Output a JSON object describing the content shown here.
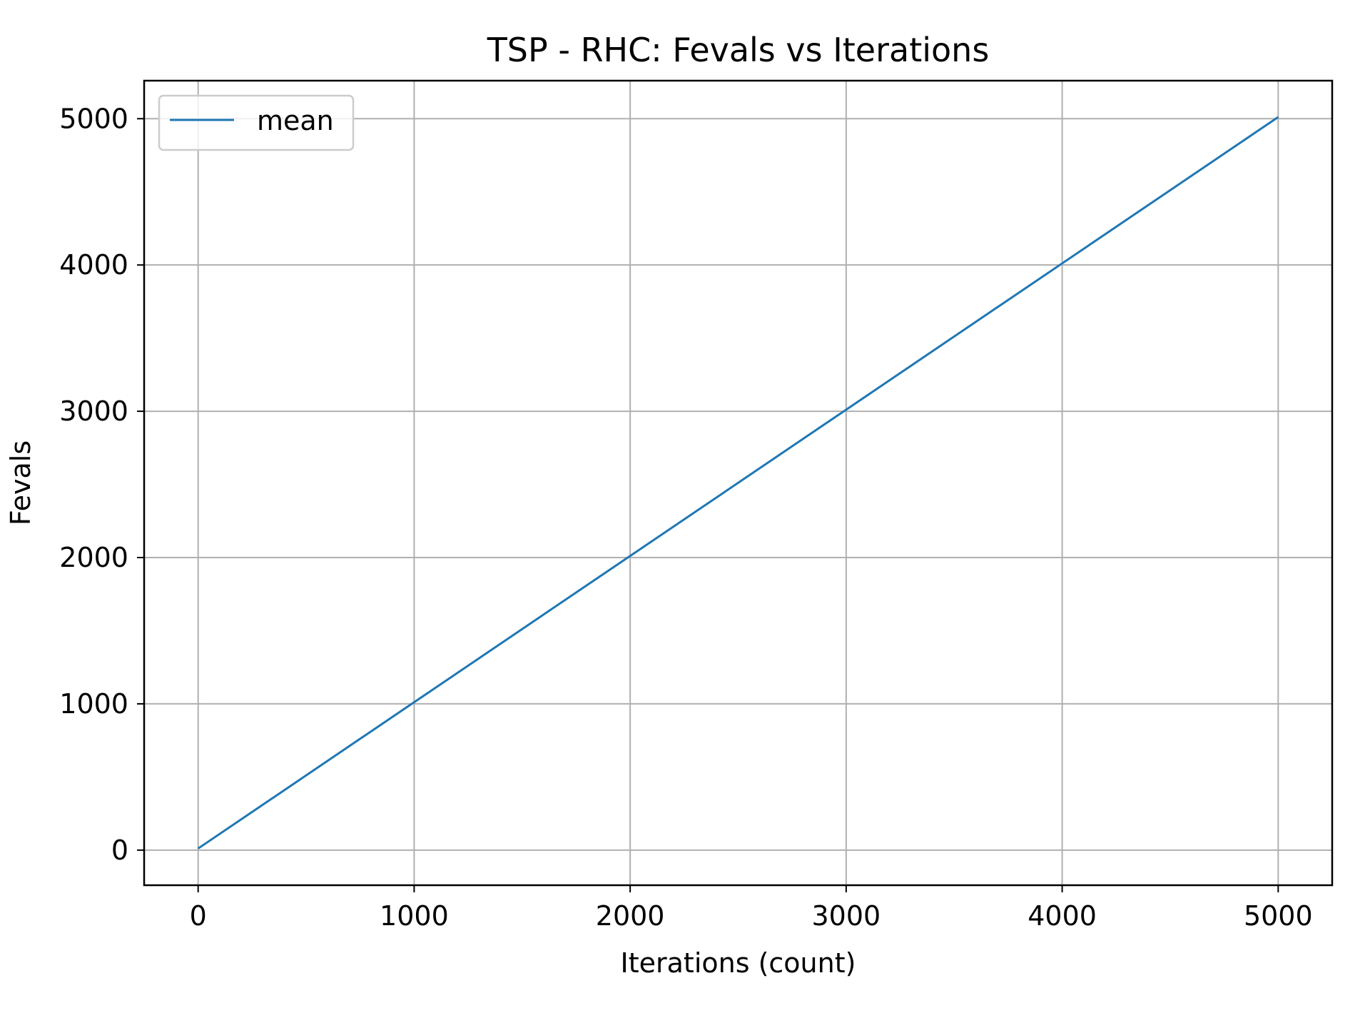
{
  "chart_data": {
    "type": "line",
    "title": "TSP - RHC: Fevals vs Iterations",
    "xlabel": "Iterations (count)",
    "ylabel": "Fevals",
    "xlim": [
      -250,
      5250
    ],
    "ylim": [
      -240,
      5260
    ],
    "xticks": [
      0,
      1000,
      2000,
      3000,
      4000,
      5000
    ],
    "yticks": [
      0,
      1000,
      2000,
      3000,
      4000,
      5000
    ],
    "grid": true,
    "legend_position": "upper-left",
    "series": [
      {
        "name": "mean",
        "color": "#1f77b4",
        "x": [
          0,
          1000,
          2000,
          3000,
          4000,
          5000
        ],
        "y": [
          11,
          1011,
          2011,
          3011,
          4011,
          5011
        ]
      }
    ]
  }
}
